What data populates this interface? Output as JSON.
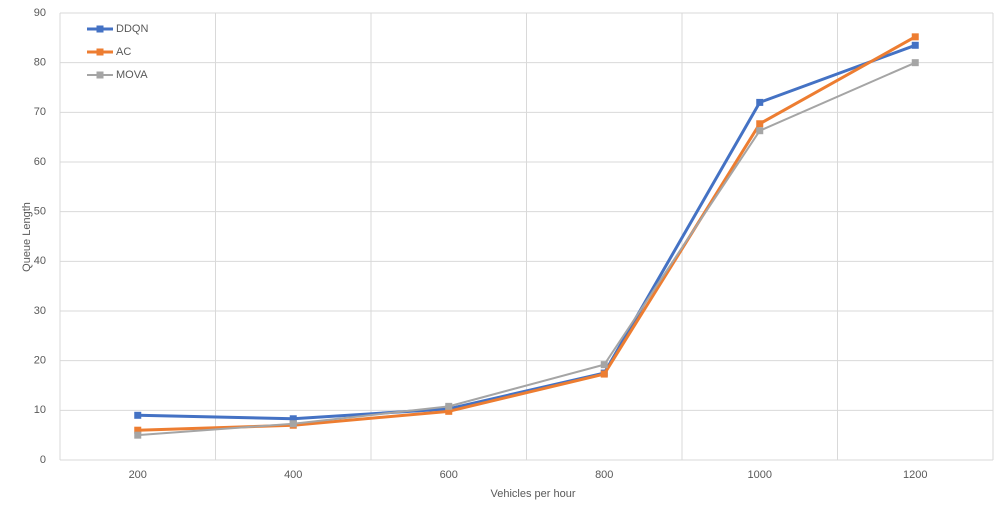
{
  "chart_data": {
    "type": "line",
    "x_label": "Vehicles per hour",
    "y_label": "Queue Length",
    "categories": [
      "200",
      "400",
      "600",
      "800",
      "1000",
      "1200"
    ],
    "series": [
      {
        "name": "DDQN",
        "color": "#4472c4",
        "values": [
          9,
          8.3,
          10.3,
          17.5,
          72,
          83.5
        ]
      },
      {
        "name": "AC",
        "color": "#ed7d31",
        "values": [
          6,
          7,
          9.8,
          17.3,
          67.7,
          85.2
        ]
      },
      {
        "name": "MOVA",
        "color": "#a5a5a5",
        "values": [
          5,
          7.3,
          10.8,
          19.2,
          66.3,
          80
        ]
      }
    ],
    "ylim": [
      0,
      90
    ],
    "yticks": [
      0,
      10,
      20,
      30,
      40,
      50,
      60,
      70,
      80,
      90
    ],
    "grid": true,
    "legend": "top-left"
  }
}
